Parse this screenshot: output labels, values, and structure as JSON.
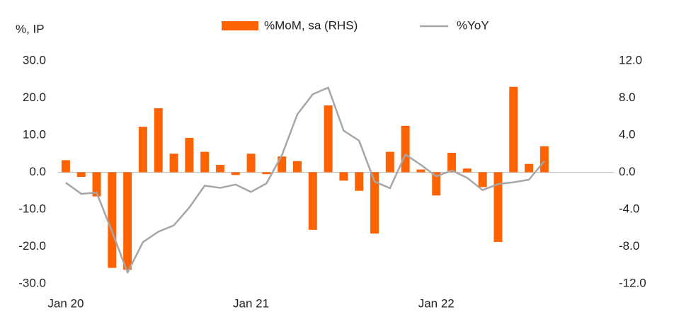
{
  "chart_data": {
    "type": "bar",
    "ylabel": "%, IP",
    "categories": [
      "Jan 20",
      null,
      null,
      null,
      null,
      null,
      null,
      null,
      null,
      null,
      null,
      null,
      "Jan 21",
      null,
      null,
      null,
      null,
      null,
      null,
      null,
      null,
      null,
      null,
      null,
      "Jan 22",
      null,
      null,
      null,
      null,
      null,
      null,
      null,
      null,
      null,
      null,
      null
    ],
    "series": [
      {
        "name": "%MoM, sa (RHS)",
        "type": "bar",
        "axis": "y2",
        "color": "#ff6200",
        "values": [
          1.3,
          -0.5,
          -2.6,
          -10.3,
          -10.5,
          4.9,
          6.9,
          2.0,
          3.7,
          2.2,
          0.8,
          -0.3,
          2.0,
          -0.2,
          1.7,
          1.2,
          -6.2,
          7.2,
          -0.9,
          -2.0,
          -6.6,
          2.2,
          5.0,
          0.3,
          -2.5,
          2.1,
          0.4,
          -1.6,
          -7.5,
          9.2,
          0.9,
          2.8,
          null,
          null,
          null,
          null
        ]
      },
      {
        "name": "%YoY",
        "type": "line",
        "color": "#a6a6a6",
        "values": [
          -2.8,
          -5.8,
          -5.5,
          -16,
          -27,
          -18.8,
          -16,
          -14.3,
          -9.5,
          -3.6,
          -4.2,
          -3.3,
          -5.3,
          -3,
          4.6,
          15.6,
          21,
          22.8,
          11.2,
          8.5,
          -2.5,
          -4.3,
          4.8,
          2,
          -1.1,
          0.5,
          -1.5,
          -4.8,
          -3.2,
          -2.7,
          -2,
          3,
          null,
          null,
          null,
          null
        ]
      }
    ],
    "ylim": [
      -30,
      30
    ],
    "yticks": [
      {
        "value": -30,
        "label": "-30.0"
      },
      {
        "value": -20,
        "label": "-20.0"
      },
      {
        "value": -10,
        "label": "-10.0"
      },
      {
        "value": 0,
        "label": "0.0"
      },
      {
        "value": 10,
        "label": "10.0"
      },
      {
        "value": 20,
        "label": "20.0"
      },
      {
        "value": 30,
        "label": "30.0"
      }
    ],
    "y2lim": [
      -12,
      12
    ],
    "y2ticks": [
      {
        "value": -12,
        "label": "-12.0"
      },
      {
        "value": -8,
        "label": "-8.0"
      },
      {
        "value": -4,
        "label": "-4.0"
      },
      {
        "value": 0,
        "label": "0.0"
      },
      {
        "value": 4,
        "label": "4.0"
      },
      {
        "value": 8,
        "label": "8.0"
      },
      {
        "value": 12,
        "label": "12.0"
      }
    ],
    "legend": "top"
  }
}
